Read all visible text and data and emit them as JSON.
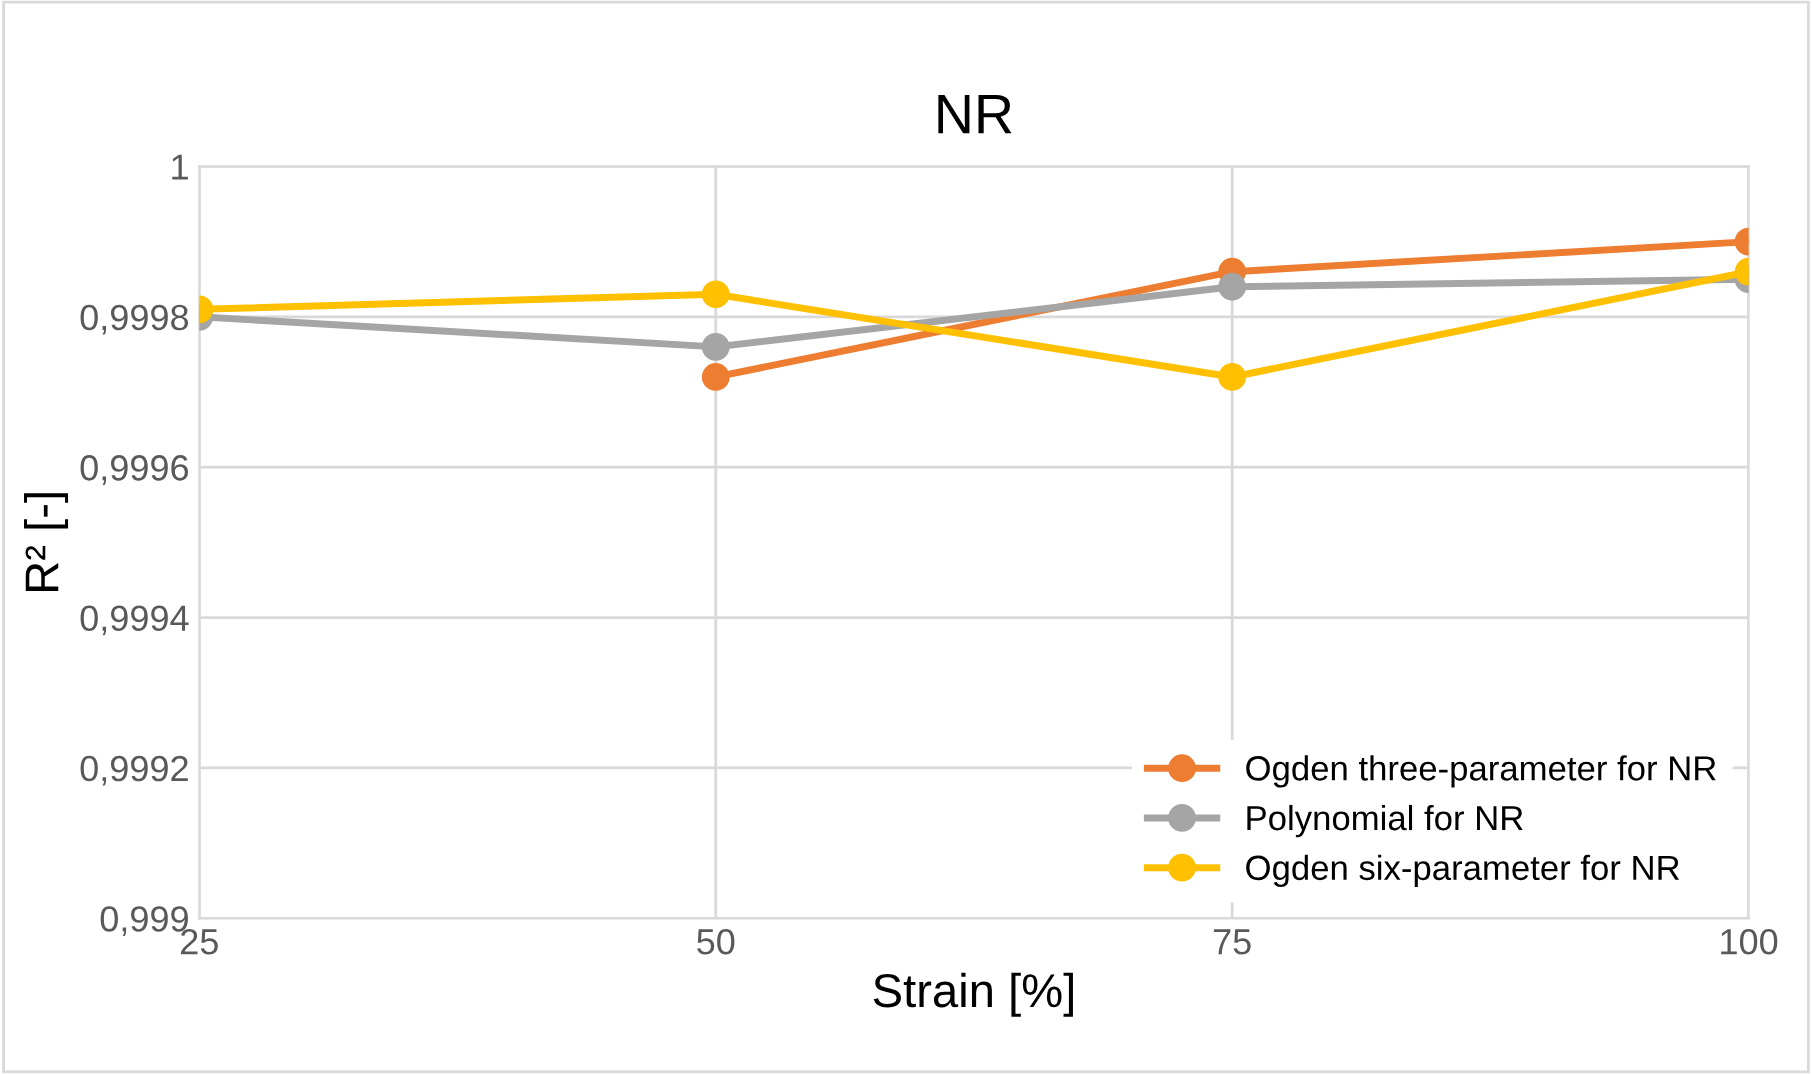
{
  "chart_data": {
    "type": "line",
    "title": "NR",
    "xlabel": "Strain [%]",
    "ylabel": "R² [-]",
    "x": [
      25,
      50,
      75,
      100
    ],
    "series": [
      {
        "name": "Ogden three-parameter for NR",
        "color": "#ed7d31",
        "values": [
          null,
          0.99972,
          0.99986,
          0.9999
        ]
      },
      {
        "name": "Polynomial for NR",
        "color": "#a5a5a5",
        "values": [
          0.9998,
          0.99976,
          0.99984,
          0.99985
        ]
      },
      {
        "name": "Ogden six-parameter for NR",
        "color": "#ffc000",
        "values": [
          0.99981,
          0.99983,
          0.99972,
          0.99986
        ]
      }
    ],
    "xlim": [
      25,
      100
    ],
    "xticks": [
      25,
      50,
      75,
      100
    ],
    "ylim": [
      0.999,
      1
    ],
    "yticks": [
      {
        "value": 0.999,
        "label": "0,999"
      },
      {
        "value": 0.9992,
        "label": "0,9992"
      },
      {
        "value": 0.9994,
        "label": "0,9994"
      },
      {
        "value": 0.9996,
        "label": "0,9996"
      },
      {
        "value": 0.9998,
        "label": "0,9998"
      },
      {
        "value": 1,
        "label": "1"
      }
    ],
    "grid": true,
    "legend": "bottom right",
    "marker": "circle",
    "line_style": "solid"
  }
}
